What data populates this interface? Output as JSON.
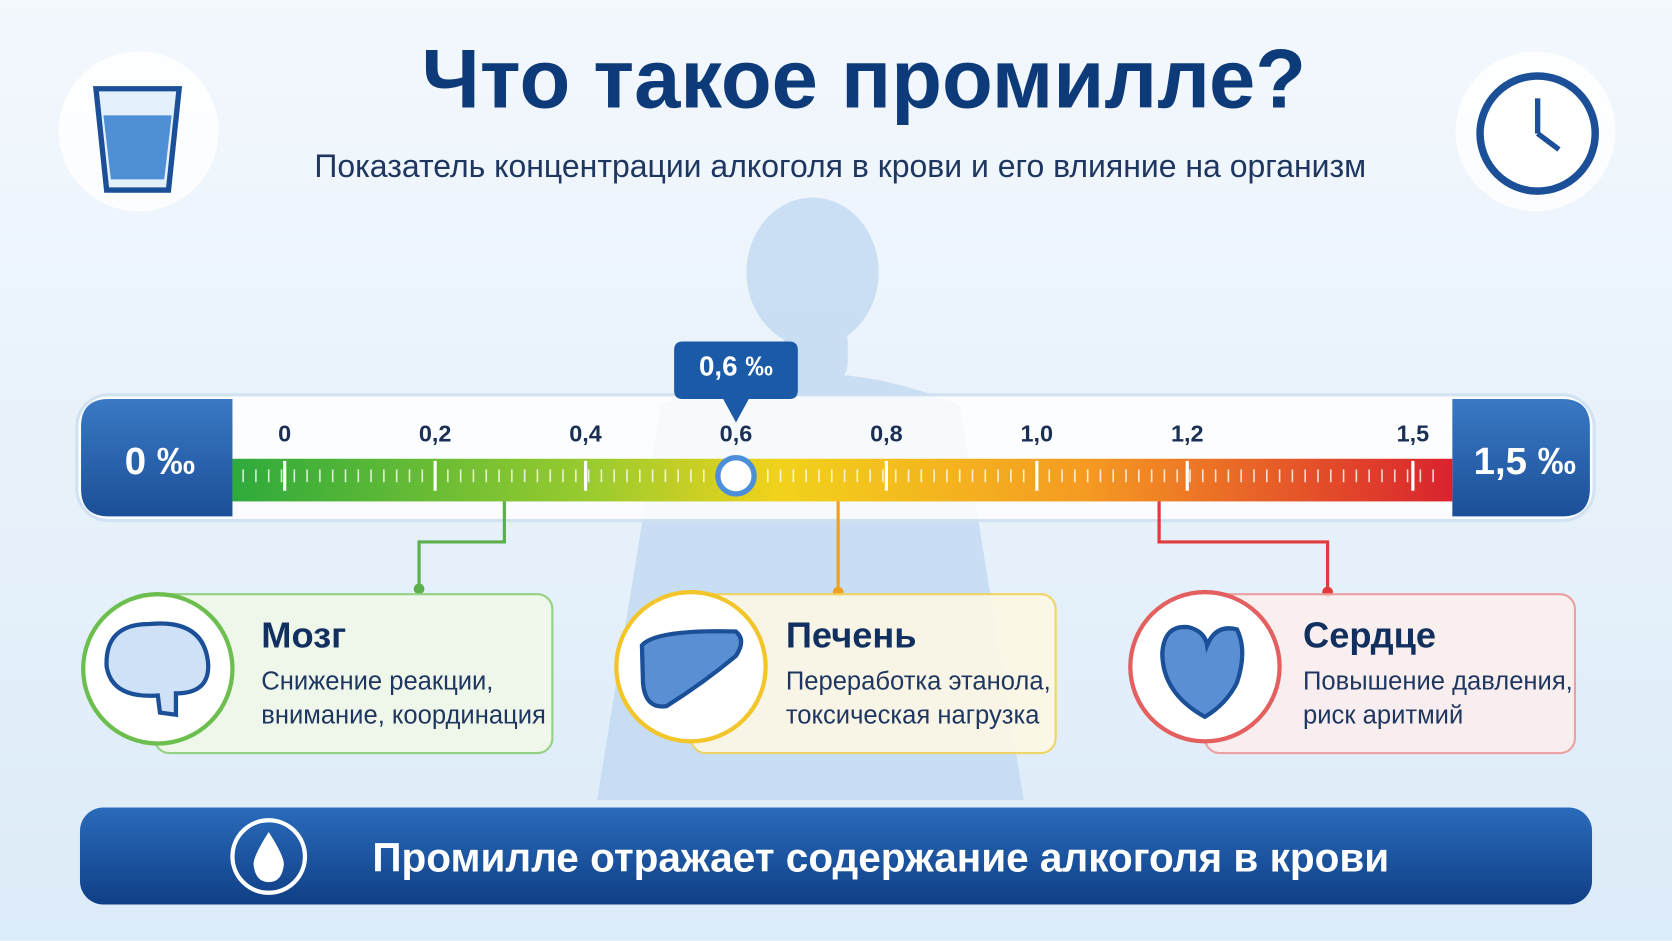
{
  "header": {
    "title": "Что такое промилле?",
    "subtitle": "Показатель концентрации алкоголя в крови и его влияние на организм"
  },
  "scale": {
    "min_label": "0 ‰",
    "max_label": "1,5 ‰",
    "ticks": [
      {
        "value": 0,
        "label": "0"
      },
      {
        "value": 0.2,
        "label": "0,2"
      },
      {
        "value": 0.4,
        "label": "0,4"
      },
      {
        "value": 0.6,
        "label": "0,6"
      },
      {
        "value": 0.8,
        "label": "0,8"
      },
      {
        "value": 1.0,
        "label": "1,0"
      },
      {
        "value": 1.2,
        "label": "1,2"
      },
      {
        "value": 1.5,
        "label": "1,5"
      }
    ],
    "marker": {
      "value": 0.6,
      "label": "0,6 ‰"
    }
  },
  "cards": [
    {
      "title": "Мозг",
      "lines": [
        "Снижение реакции,",
        "внимание, координация"
      ]
    },
    {
      "title": "Печень",
      "lines": [
        "Переработка этанола,",
        "токсическая нагрузка"
      ]
    },
    {
      "title": "Сердце",
      "lines": [
        "Повышение давления,",
        "риск аритмий"
      ]
    }
  ],
  "footer": {
    "text": "Промилле отражает содержание алкоголя в крови"
  }
}
